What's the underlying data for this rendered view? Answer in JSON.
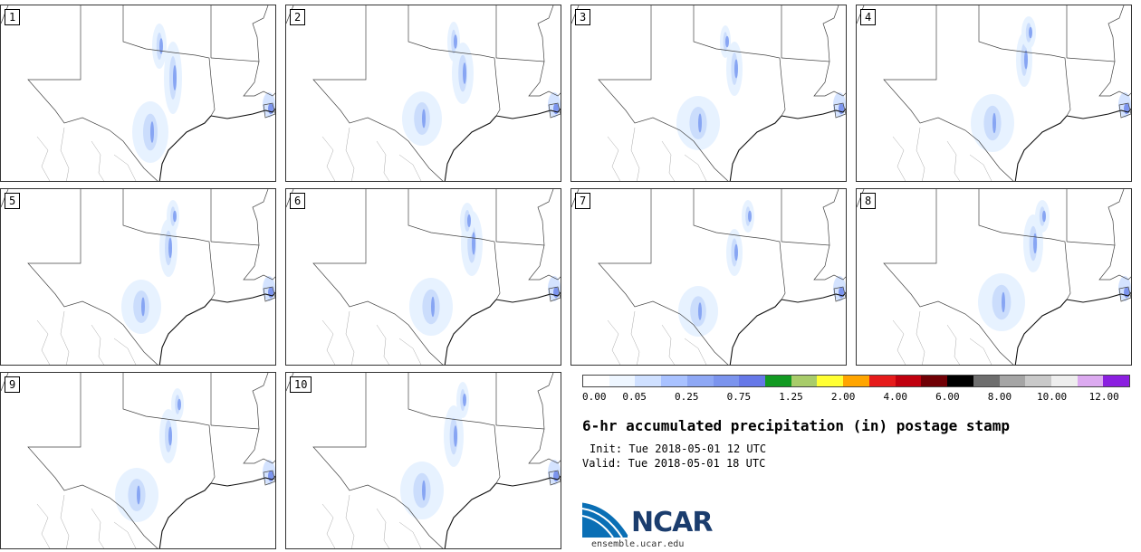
{
  "panels": [
    {
      "label": "1"
    },
    {
      "label": "2"
    },
    {
      "label": "3"
    },
    {
      "label": "4"
    },
    {
      "label": "5"
    },
    {
      "label": "6"
    },
    {
      "label": "7"
    },
    {
      "label": "8"
    },
    {
      "label": "9"
    },
    {
      "label": "10"
    }
  ],
  "colorbar": {
    "colors": [
      "#ffffff",
      "#eef6ff",
      "#cfe0ff",
      "#a9c2ff",
      "#8ea8f5",
      "#7b94ee",
      "#6678e8",
      "#129a22",
      "#a8cc6a",
      "#ffff33",
      "#ffa500",
      "#e61b1b",
      "#c0000e",
      "#700005",
      "#000000",
      "#6e6e6e",
      "#a5a5a5",
      "#c9c9c9",
      "#eeeeee",
      "#dcaaf0",
      "#8b1fe0"
    ],
    "tick_labels": [
      "0.00",
      "0.05",
      "0.25",
      "0.75",
      "1.25",
      "2.00",
      "4.00",
      "6.00",
      "8.00",
      "10.00",
      "12.00"
    ]
  },
  "title": "6-hr accumulated precipitation (in) postage stamp",
  "init": "Init: Tue 2018-05-01 12 UTC",
  "valid": "Valid: Tue 2018-05-01 18 UTC",
  "logo": {
    "name": "ncar-logo",
    "text": "NCAR"
  },
  "site": "ensemble.ucar.edu"
}
